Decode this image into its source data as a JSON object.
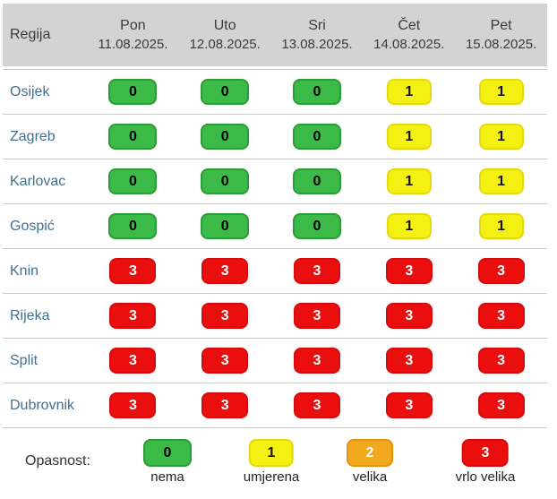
{
  "chart_data": {
    "type": "table",
    "header": {
      "region": "Regija",
      "days": [
        {
          "name": "Pon",
          "date": "11.08.2025."
        },
        {
          "name": "Uto",
          "date": "12.08.2025."
        },
        {
          "name": "Sri",
          "date": "13.08.2025."
        },
        {
          "name": "Čet",
          "date": "14.08.2025."
        },
        {
          "name": "Pet",
          "date": "15.08.2025."
        }
      ]
    },
    "rows": [
      {
        "region": "Osijek",
        "values": [
          0,
          0,
          0,
          1,
          1
        ]
      },
      {
        "region": "Zagreb",
        "values": [
          0,
          0,
          0,
          1,
          1
        ]
      },
      {
        "region": "Karlovac",
        "values": [
          0,
          0,
          0,
          1,
          1
        ]
      },
      {
        "region": "Gospić",
        "values": [
          0,
          0,
          0,
          1,
          1
        ]
      },
      {
        "region": "Knin",
        "values": [
          3,
          3,
          3,
          3,
          3
        ]
      },
      {
        "region": "Rijeka",
        "values": [
          3,
          3,
          3,
          3,
          3
        ]
      },
      {
        "region": "Split",
        "values": [
          3,
          3,
          3,
          3,
          3
        ]
      },
      {
        "region": "Dubrovnik",
        "values": [
          3,
          3,
          3,
          3,
          3
        ]
      }
    ],
    "legend": {
      "label": "Opasnost:",
      "items": [
        {
          "value": 0,
          "label": "nema",
          "color": "#3cba47"
        },
        {
          "value": 1,
          "label": "umjerena",
          "color": "#f4f011"
        },
        {
          "value": 2,
          "label": "velika",
          "color": "#f2a91e"
        },
        {
          "value": 3,
          "label": "vrlo velika",
          "color": "#ea0e0e"
        }
      ]
    },
    "colors": {
      "header_background": "#d3d3d3",
      "header_text": "#3a3a3a",
      "region_text": "#41708f",
      "row_separator": "#c9c9c9"
    }
  }
}
